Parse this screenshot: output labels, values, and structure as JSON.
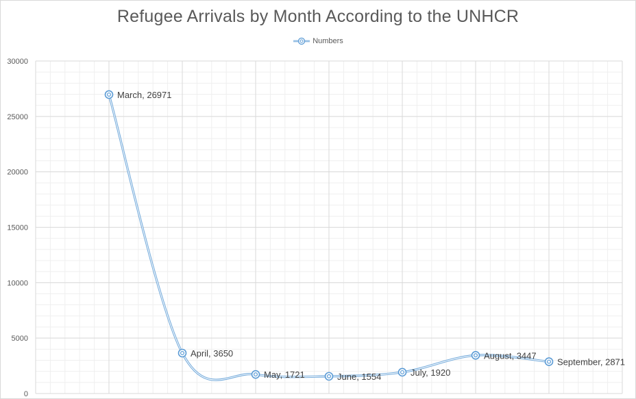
{
  "chart_data": {
    "type": "line",
    "title": "Refugee Arrivals by Month According to the UNHCR",
    "xlabel": "",
    "ylabel": "",
    "categories": [
      "March",
      "April",
      "May",
      "June",
      "July",
      "August",
      "September"
    ],
    "series": [
      {
        "name": "Numbers",
        "values": [
          26971,
          3650,
          1721,
          1554,
          1920,
          3447,
          2871
        ]
      }
    ],
    "data_labels": [
      "March, 26971",
      "April, 3650",
      "May, 1721",
      "June, 1554",
      "July, 1920",
      "August, 3447",
      "September, 2871"
    ],
    "ylim": [
      0,
      30000
    ],
    "yticks": [
      "0",
      "5000",
      "10000",
      "15000",
      "20000",
      "25000",
      "30000"
    ],
    "grid": true,
    "smooth": true,
    "legend_position": "top",
    "colors": {
      "series": "#5b9bd5",
      "grid_major": "#d9d9d9",
      "grid_minor": "#efefef",
      "text": "#595959"
    }
  }
}
